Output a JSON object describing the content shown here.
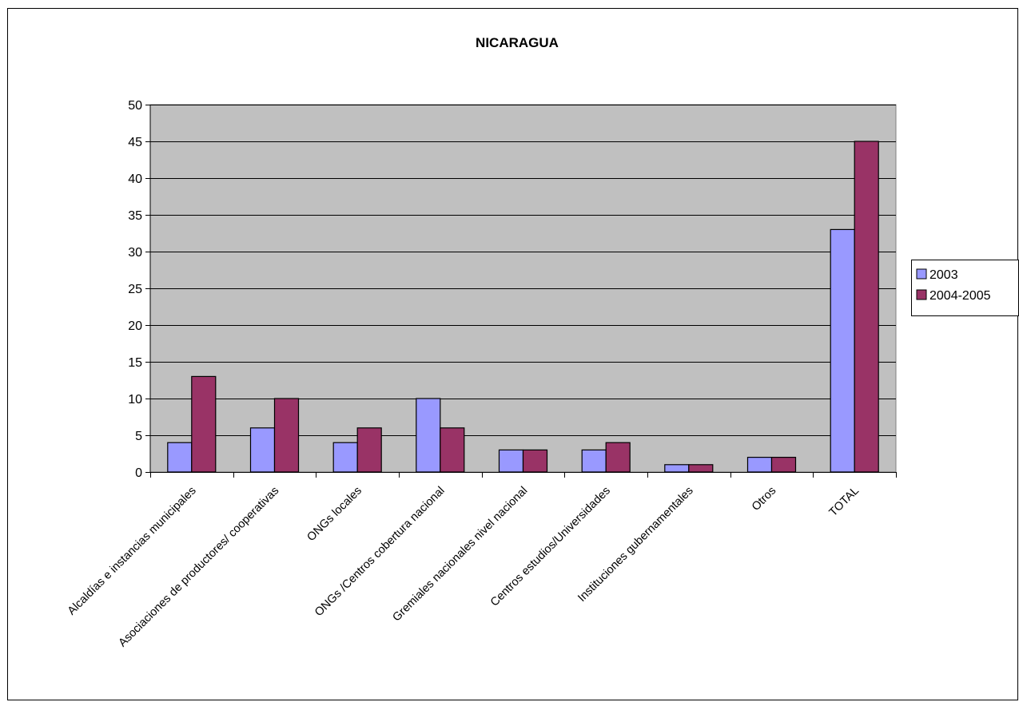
{
  "chart_data": {
    "type": "bar",
    "title": "NICARAGUA",
    "xlabel": "",
    "ylabel": "",
    "ylim": [
      0,
      50
    ],
    "yticks": [
      0,
      5,
      10,
      15,
      20,
      25,
      30,
      35,
      40,
      45,
      50
    ],
    "grid": true,
    "legend_position": "right",
    "categories": [
      "Alcaldías e instancias municipales",
      "Asociaciones de productores/ cooperativas",
      "ONGs locales",
      "ONGs /Centros cobertura nacional",
      "Gremiales nacionales nivel nacional",
      "Centros estudios/Universidades",
      "Instituciones gubernamentales",
      "Otros",
      "TOTAL"
    ],
    "series": [
      {
        "name": "2003",
        "color": "#9999ff",
        "values": [
          4,
          6,
          4,
          10,
          3,
          3,
          1,
          2,
          33
        ]
      },
      {
        "name": "2004-2005",
        "color": "#993366",
        "values": [
          13,
          10,
          6,
          6,
          3,
          4,
          1,
          2,
          45
        ]
      }
    ],
    "plot_background": "#c0c0c0"
  }
}
